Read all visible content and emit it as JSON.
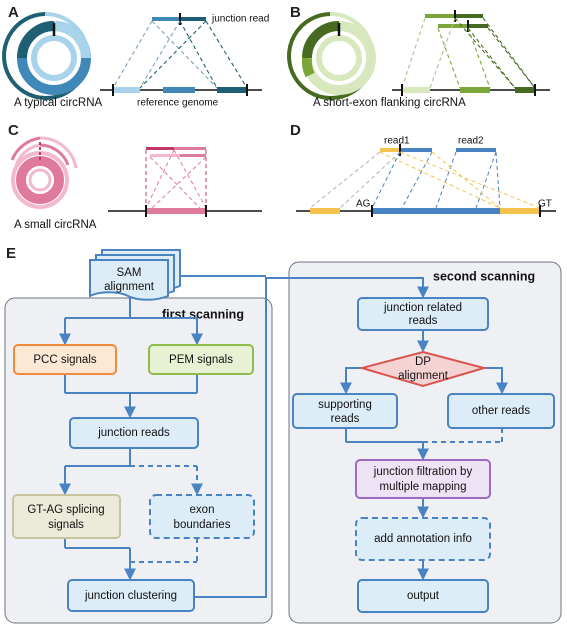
{
  "panels": {
    "A": {
      "letter": "A",
      "caption": "A typical circRNA",
      "junction_label": "junction read",
      "genome_label": "reference genome"
    },
    "B": {
      "letter": "B",
      "caption": "A short-exon flanking circRNA"
    },
    "C": {
      "letter": "C",
      "caption": "A small circRNA"
    },
    "D": {
      "letter": "D",
      "read1": "read1",
      "read2": "read2",
      "ag": "AG",
      "gt": "GT"
    },
    "E": {
      "letter": "E"
    }
  },
  "flow": {
    "sam_line1": "SAM",
    "sam_line2": "alignment",
    "first_title": "first scanning",
    "second_title": "second scanning",
    "pcc": "PCC signals",
    "pem": "PEM signals",
    "junction_reads": "junction reads",
    "gtag_line1": "GT-AG splicing",
    "gtag_line2": "signals",
    "exon_line1": "exon",
    "exon_line2": "boundaries",
    "clustering": "junction clustering",
    "related_line1": "junction related",
    "related_line2": "reads",
    "dp_line1": "DP",
    "dp_line2": "alignment",
    "supporting_line1": "supporting",
    "supporting_line2": "reads",
    "other": "other reads",
    "filter_line1": "junction filtration by",
    "filter_line2": "multiple mapping",
    "annotation": "add annotation info",
    "output": "output"
  },
  "colors": {
    "flow_blue": "#4a83c3",
    "box_fill": "#dcedf7",
    "pcc_border": "#f08a3c",
    "pcc_fill": "#fde8d6",
    "pem_border": "#8fbc4c",
    "pem_fill": "#e6f2d3",
    "gtag_border": "#c8c4a0",
    "gtag_fill": "#ecebd9",
    "filter_border": "#9a6bbf",
    "filter_fill": "#eee3f5",
    "dp_border": "#d9534f",
    "dp_fill": "#f6d3d3",
    "group_fill": "#eef0f3",
    "dark_teal": "#1f5f73",
    "mid_blue": "#3f88b8",
    "light_blue": "#a9d3ea",
    "dark_green": "#466a1f",
    "mid_green": "#7aa63a",
    "light_green": "#d7e8bf",
    "pink": "#e07a9b",
    "light_pink": "#f3b9cb",
    "yellow": "#f4c34e"
  }
}
